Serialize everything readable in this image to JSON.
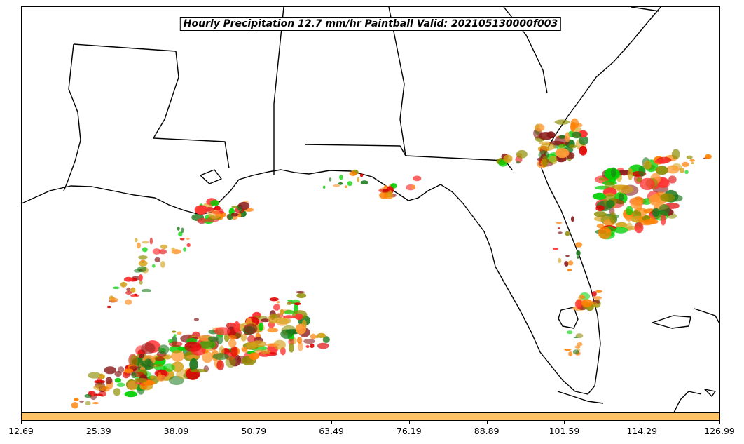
{
  "map": {
    "title": "Hourly Precipitation 12.7 mm/hr Paintball Valid: 202105130000f003",
    "region": "U.S. Gulf Coast and Florida",
    "boundary_color": "#000000",
    "background_color": "#ffffff",
    "member_colors": [
      "#e00000",
      "#ff7f00",
      "#00d000",
      "#8c8c00",
      "#1e7a1e",
      "#8b1a1a",
      "#ff9933",
      "#ff3030",
      "#d4a017"
    ]
  },
  "colorbar": {
    "fill_color": "#ffc266",
    "ticks": [
      "12.69",
      "25.39",
      "38.09",
      "50.79",
      "63.49",
      "76.19",
      "88.89",
      "101.59",
      "114.29",
      "126.99"
    ]
  }
}
